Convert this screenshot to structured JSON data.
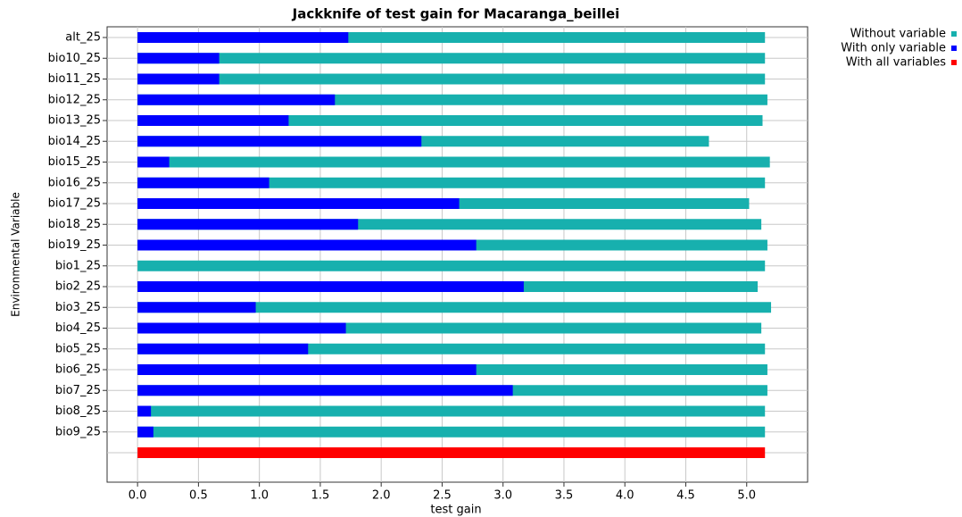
{
  "chart_data": {
    "type": "bar",
    "orientation": "horizontal",
    "title": "Jackknife of test gain for Macaranga_beillei",
    "x_label": "test gain",
    "y_label": "Environmental Variable",
    "categories": [
      "alt_25",
      "bio10_25",
      "bio11_25",
      "bio12_25",
      "bio13_25",
      "bio14_25",
      "bio15_25",
      "bio16_25",
      "bio17_25",
      "bio18_25",
      "bio19_25",
      "bio1_25",
      "bio2_25",
      "bio3_25",
      "bio4_25",
      "bio5_25",
      "bio6_25",
      "bio7_25",
      "bio8_25",
      "bio9_25",
      null
    ],
    "series": [
      {
        "name": "Without variable",
        "color": "#17b0ae",
        "values": [
          5.15,
          5.15,
          5.15,
          5.17,
          5.13,
          4.69,
          5.19,
          5.15,
          5.02,
          5.12,
          5.17,
          5.15,
          5.09,
          5.2,
          5.12,
          5.15,
          5.17,
          5.17,
          5.15,
          5.15,
          null
        ]
      },
      {
        "name": "With only variable",
        "color": "#0000ff",
        "values": [
          1.73,
          0.67,
          0.67,
          1.62,
          1.24,
          2.33,
          0.26,
          1.08,
          2.64,
          1.81,
          2.78,
          0,
          3.17,
          0.97,
          1.71,
          1.4,
          2.78,
          3.08,
          0.11,
          0.13,
          null
        ]
      },
      {
        "name": "With all variables",
        "color": "#ff0000",
        "values": [
          null,
          null,
          null,
          null,
          null,
          null,
          null,
          null,
          null,
          null,
          null,
          null,
          null,
          null,
          null,
          null,
          null,
          null,
          null,
          null,
          5.15
        ]
      }
    ],
    "xlim": [
      -0.25,
      5.5
    ],
    "xticks": [
      {
        "value": 0,
        "label": "0.0"
      },
      {
        "value": 0.5,
        "label": "0.5"
      },
      {
        "value": 1,
        "label": "1.0"
      },
      {
        "value": 1.5,
        "label": "1.5"
      },
      {
        "value": 2,
        "label": "2.0"
      },
      {
        "value": 2.5,
        "label": "2.5"
      },
      {
        "value": 3,
        "label": "3.0"
      },
      {
        "value": 3.5,
        "label": "3.5"
      },
      {
        "value": 4,
        "label": "4.0"
      },
      {
        "value": 4.5,
        "label": "4.5"
      },
      {
        "value": 5,
        "label": "5.0"
      }
    ],
    "grid": true,
    "legend": "top-right"
  }
}
